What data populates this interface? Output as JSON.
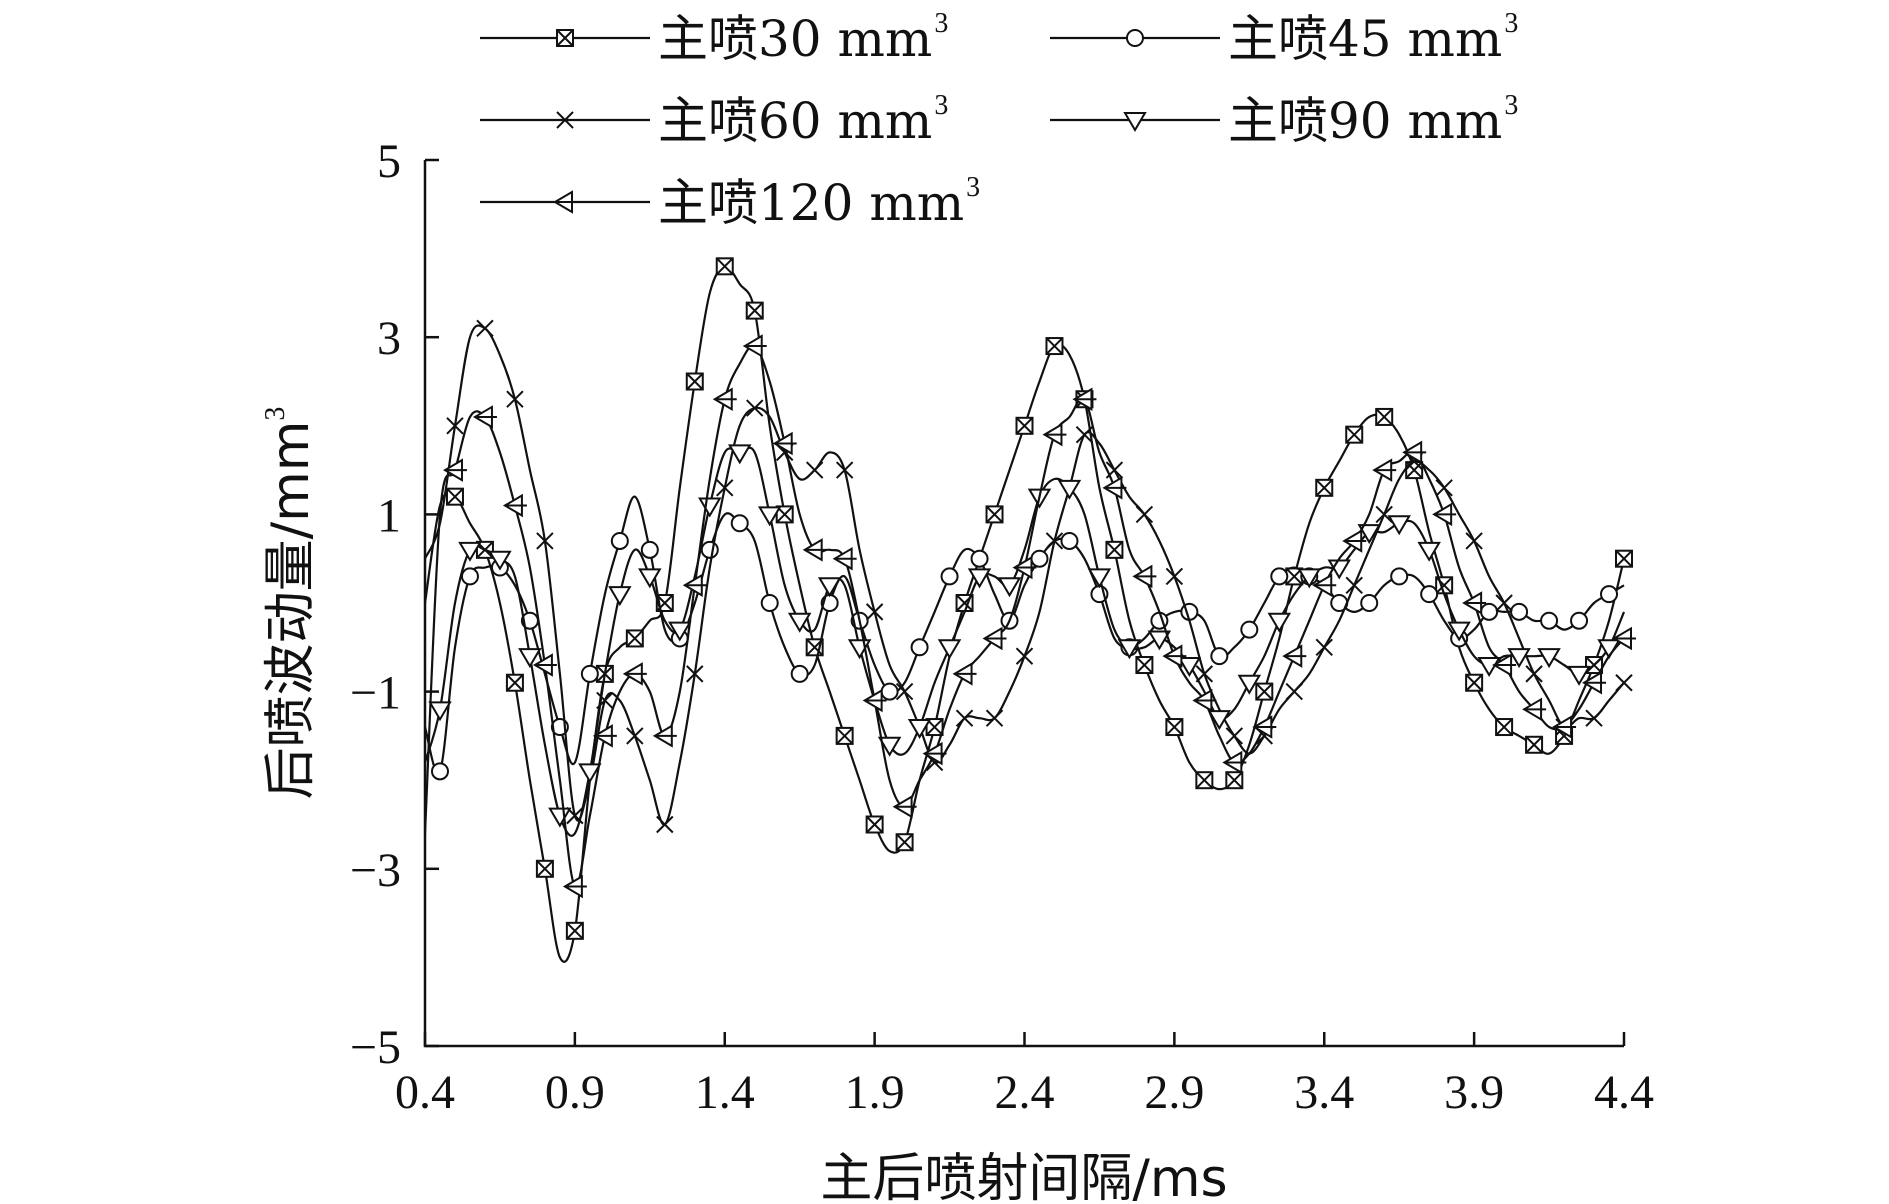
{
  "chart_data": {
    "type": "line",
    "title": "",
    "xlabel": "主后喷射间隔/ms",
    "ylabel": "后喷波动量/mm",
    "ylabel_sup": "3",
    "xlim": [
      0.4,
      4.4
    ],
    "ylim": [
      -5,
      5
    ],
    "x_ticks": [
      "0.4",
      "0.9",
      "1.4",
      "1.9",
      "2.4",
      "2.9",
      "3.4",
      "3.9",
      "4.4"
    ],
    "y_ticks": [
      "5",
      "3",
      "1",
      "−1",
      "−3",
      "−5"
    ],
    "grid": false,
    "legend_position": "top",
    "x": [
      0.4,
      0.45,
      0.5,
      0.55,
      0.6,
      0.65,
      0.7,
      0.75,
      0.8,
      0.85,
      0.9,
      0.95,
      1.0,
      1.05,
      1.1,
      1.15,
      1.2,
      1.25,
      1.3,
      1.35,
      1.4,
      1.45,
      1.5,
      1.55,
      1.6,
      1.65,
      1.7,
      1.75,
      1.8,
      1.85,
      1.9,
      1.95,
      2.0,
      2.05,
      2.1,
      2.15,
      2.2,
      2.25,
      2.3,
      2.35,
      2.4,
      2.45,
      2.5,
      2.55,
      2.6,
      2.65,
      2.7,
      2.75,
      2.8,
      2.85,
      2.9,
      2.95,
      3.0,
      3.05,
      3.1,
      3.15,
      3.2,
      3.25,
      3.3,
      3.35,
      3.4,
      3.45,
      3.5,
      3.55,
      3.6,
      3.65,
      3.7,
      3.75,
      3.8,
      3.85,
      3.9,
      3.95,
      4.0,
      4.05,
      4.1,
      4.15,
      4.2,
      4.25,
      4.3,
      4.35,
      4.4
    ],
    "series": [
      {
        "name": "主喷30 mm",
        "marker": "square-x",
        "values": [
          0.0,
          1.1,
          1.2,
          0.9,
          0.6,
          0.0,
          -0.9,
          -2.0,
          -3.0,
          -4.0,
          -3.7,
          -2.0,
          -0.8,
          -0.5,
          -0.4,
          -0.2,
          0.0,
          1.3,
          2.5,
          3.5,
          3.8,
          3.6,
          3.3,
          2.0,
          1.0,
          0.2,
          -0.5,
          -1.0,
          -1.5,
          -2.0,
          -2.5,
          -2.8,
          -2.7,
          -2.0,
          -1.4,
          -0.6,
          0.0,
          0.5,
          1.0,
          1.5,
          2.0,
          2.5,
          2.9,
          2.8,
          2.3,
          1.3,
          0.6,
          -0.2,
          -0.7,
          -1.1,
          -1.4,
          -1.8,
          -2.0,
          -2.1,
          -2.0,
          -1.6,
          -1.0,
          -0.4,
          0.3,
          0.9,
          1.3,
          1.6,
          1.9,
          2.1,
          2.1,
          1.9,
          1.5,
          0.8,
          0.2,
          -0.5,
          -0.9,
          -1.2,
          -1.4,
          -1.5,
          -1.6,
          -1.7,
          -1.5,
          -1.1,
          -0.7,
          -0.2,
          0.5
        ]
      },
      {
        "name": "主喷45 mm",
        "marker": "circle",
        "values": [
          -1.4,
          -1.9,
          -0.5,
          0.3,
          0.4,
          0.4,
          0.2,
          -0.2,
          -0.8,
          -1.4,
          -1.8,
          -0.8,
          0.1,
          0.7,
          1.2,
          0.6,
          -0.3,
          -0.4,
          0.0,
          0.6,
          1.0,
          0.9,
          0.7,
          0.0,
          -0.5,
          -0.8,
          -0.7,
          0.0,
          0.3,
          -0.2,
          -0.7,
          -1.0,
          -0.9,
          -0.5,
          -0.1,
          0.3,
          0.6,
          0.5,
          0.1,
          -0.2,
          0.2,
          0.5,
          0.7,
          0.7,
          0.5,
          0.1,
          -0.4,
          -0.5,
          -0.4,
          -0.2,
          -0.1,
          -0.1,
          -0.2,
          -0.6,
          -0.5,
          -0.3,
          0.0,
          0.3,
          0.4,
          0.3,
          0.2,
          0.0,
          -0.1,
          0.0,
          0.2,
          0.3,
          0.3,
          0.1,
          -0.2,
          -0.4,
          -0.3,
          -0.1,
          -0.1,
          -0.1,
          -0.2,
          -0.2,
          -0.3,
          -0.2,
          0.0,
          0.1,
          0.2
        ]
      },
      {
        "name": "主喷60 mm",
        "marker": "x",
        "values": [
          0.5,
          0.9,
          2.0,
          3.0,
          3.1,
          2.8,
          2.3,
          1.5,
          0.7,
          -0.8,
          -2.4,
          -2.0,
          -1.1,
          -1.1,
          -1.5,
          -2.0,
          -2.5,
          -1.8,
          -0.8,
          0.4,
          1.3,
          2.0,
          2.2,
          2.1,
          1.7,
          1.4,
          1.5,
          1.7,
          1.5,
          0.6,
          -0.1,
          -0.7,
          -1.0,
          -1.4,
          -1.8,
          -1.6,
          -1.3,
          -1.3,
          -1.3,
          -1.0,
          -0.6,
          -0.1,
          0.7,
          1.3,
          1.9,
          1.8,
          1.5,
          1.2,
          1.0,
          0.7,
          0.3,
          -0.2,
          -0.8,
          -1.2,
          -1.5,
          -1.7,
          -1.5,
          -1.2,
          -1.0,
          -0.8,
          -0.5,
          -0.2,
          0.2,
          0.6,
          1.0,
          1.4,
          1.6,
          1.5,
          1.3,
          1.0,
          0.7,
          0.3,
          0.0,
          -0.4,
          -0.8,
          -1.1,
          -1.4,
          -1.3,
          -1.3,
          -1.1,
          -0.9
        ]
      },
      {
        "name": "主喷90 mm",
        "marker": "triangle-down",
        "values": [
          -1.8,
          -1.2,
          0.0,
          0.6,
          0.6,
          0.5,
          0.3,
          -0.6,
          -1.6,
          -2.4,
          -2.6,
          -1.9,
          -0.8,
          0.1,
          0.6,
          0.3,
          -0.2,
          -0.3,
          0.3,
          1.1,
          1.7,
          1.7,
          1.7,
          1.0,
          0.2,
          -0.2,
          -0.3,
          0.2,
          0.2,
          -0.5,
          -1.1,
          -1.6,
          -1.7,
          -1.4,
          -0.9,
          -0.5,
          -0.1,
          0.3,
          0.3,
          0.2,
          0.6,
          1.2,
          1.4,
          1.3,
          1.0,
          0.3,
          -0.3,
          -0.5,
          -0.5,
          -0.4,
          -0.5,
          -0.7,
          -1.0,
          -1.3,
          -1.2,
          -0.9,
          -0.6,
          -0.2,
          0.1,
          0.3,
          0.4,
          0.4,
          0.6,
          0.8,
          0.8,
          0.9,
          0.9,
          0.6,
          0.1,
          -0.3,
          -0.6,
          -0.7,
          -0.6,
          -0.6,
          -0.6,
          -0.6,
          -0.7,
          -0.8,
          -0.7,
          -0.5,
          -0.1
        ]
      },
      {
        "name": "主喷120 mm",
        "marker": "triangle-left",
        "values": [
          -2.6,
          1.0,
          1.5,
          2.1,
          2.1,
          1.7,
          1.1,
          0.4,
          -0.7,
          -2.0,
          -3.2,
          -2.4,
          -1.5,
          -1.0,
          -0.8,
          -1.0,
          -1.5,
          -1.0,
          0.2,
          1.4,
          2.3,
          2.7,
          2.9,
          2.5,
          1.8,
          1.0,
          0.6,
          0.6,
          0.5,
          -0.2,
          -1.1,
          -2.0,
          -2.3,
          -2.0,
          -1.7,
          -1.2,
          -0.8,
          -0.6,
          -0.4,
          -0.2,
          0.4,
          1.2,
          1.9,
          2.1,
          2.3,
          1.7,
          1.3,
          0.6,
          0.3,
          -0.1,
          -0.6,
          -0.9,
          -1.1,
          -1.5,
          -1.8,
          -1.7,
          -1.4,
          -1.0,
          -0.6,
          -0.2,
          0.2,
          0.5,
          0.7,
          1.0,
          1.5,
          1.6,
          1.7,
          1.4,
          1.0,
          0.4,
          0.0,
          -0.5,
          -0.7,
          -1.0,
          -1.2,
          -1.4,
          -1.4,
          -1.2,
          -0.9,
          -0.6,
          -0.4
        ]
      }
    ]
  }
}
